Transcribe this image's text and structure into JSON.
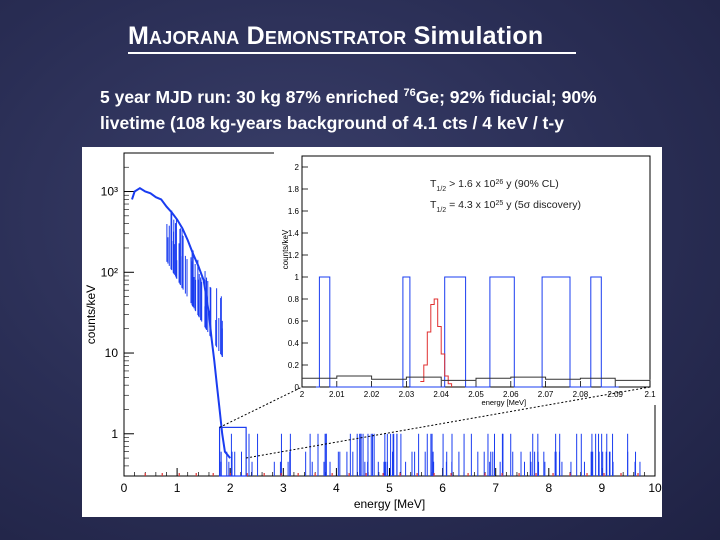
{
  "slide": {
    "title_part1_cap": "M",
    "title_part1_rest": "AJORANA",
    "title_part2_cap": "D",
    "title_part2_rest": "EMONSTRATOR",
    "title_part3": "Simulation",
    "subtitle_line1_a": "5 year MJD run:  30 kg 87% enriched ",
    "subtitle_line1_sup": "76",
    "subtitle_line1_b": "Ge; 92% fiducial; 90%",
    "subtitle_line2": "livetime  (108 kg-years background of 4.1 cts / 4 keV / t-y"
  },
  "chart_data": [
    {
      "type": "line",
      "name": "main-spectrum",
      "xlabel": "energy [MeV]",
      "ylabel": "counts/keV",
      "xlim": [
        0,
        10
      ],
      "ylim": [
        0.3,
        3000
      ],
      "yscale": "log",
      "xticks": [
        "0",
        "1",
        "2",
        "3",
        "4",
        "5",
        "6",
        "7",
        "8",
        "9",
        "10"
      ],
      "yticks": [
        "1",
        "10",
        "10²",
        "10³"
      ],
      "series": [
        {
          "color": "#1a3cf0",
          "x": [
            0.15,
            0.2,
            0.3,
            0.4,
            0.5,
            0.6,
            0.7,
            0.8,
            0.9,
            1.0,
            1.1,
            1.2,
            1.3,
            1.4,
            1.5,
            1.55,
            1.6,
            1.65,
            1.7,
            1.75,
            1.8,
            1.85,
            1.9,
            2.0
          ],
          "y": [
            800,
            1000,
            1100,
            1000,
            950,
            850,
            800,
            650,
            550,
            450,
            350,
            250,
            170,
            120,
            80,
            50,
            30,
            15,
            8,
            4,
            2,
            1,
            0.6,
            0.5
          ]
        }
      ]
    },
    {
      "type": "line",
      "name": "zoom-inset",
      "xlabel": "energy [MeV]",
      "ylabel": "counts/keV",
      "xlim": [
        2.0,
        2.1
      ],
      "ylim": [
        0,
        2.1
      ],
      "xticks": [
        "2",
        "2.01",
        "2.02",
        "2.03",
        "2.04",
        "2.05",
        "2.06",
        "2.07",
        "2.08",
        "2.09",
        "2.1"
      ],
      "yticks": [
        "0",
        "0.2",
        "0.4",
        "0.6",
        "0.8",
        "1",
        "1.2",
        "1.4",
        "1.6",
        "1.8",
        "2"
      ],
      "annotations": [
        {
          "lead": "T",
          "sub": "1/2",
          "text": " > 1.6 x 10",
          "sup": "26",
          "tail": " y  (90% CL)"
        },
        {
          "lead": "T",
          "sub": "1/2",
          "text": " = 4.3 x 10",
          "sup": "25",
          "tail": " y  (5σ discovery)"
        }
      ],
      "series": [
        {
          "color": "#1a3cf0",
          "style": "step",
          "x": [
            2.004,
            2.005,
            2.007,
            2.008,
            2.028,
            2.029,
            2.03,
            2.031,
            2.04,
            2.041,
            2.046,
            2.047,
            2.053,
            2.054,
            2.06,
            2.061,
            2.068,
            2.069,
            2.076,
            2.077,
            2.082,
            2.083,
            2.085,
            2.086,
            2.09,
            2.091
          ],
          "y": [
            0,
            1,
            1,
            0,
            0,
            1,
            1,
            0,
            0,
            1,
            1,
            0,
            0,
            1,
            1,
            0,
            0,
            1,
            1,
            0,
            0,
            1,
            1,
            0,
            0,
            0
          ]
        },
        {
          "color": "#e03030",
          "style": "step",
          "x": [
            2.034,
            2.035,
            2.036,
            2.037,
            2.038,
            2.039,
            2.04,
            2.041,
            2.042,
            2.043
          ],
          "y": [
            0.05,
            0.2,
            0.5,
            0.75,
            0.8,
            0.55,
            0.3,
            0.1,
            0.03,
            0
          ]
        },
        {
          "color": "#333333",
          "style": "step",
          "x": [
            2.0,
            2.01,
            2.02,
            2.03,
            2.04,
            2.05,
            2.06,
            2.07,
            2.08,
            2.09,
            2.1
          ],
          "y": [
            0.08,
            0.1,
            0.07,
            0.09,
            0.06,
            0.08,
            0.09,
            0.07,
            0.08,
            0.06,
            0.07
          ]
        }
      ]
    }
  ]
}
